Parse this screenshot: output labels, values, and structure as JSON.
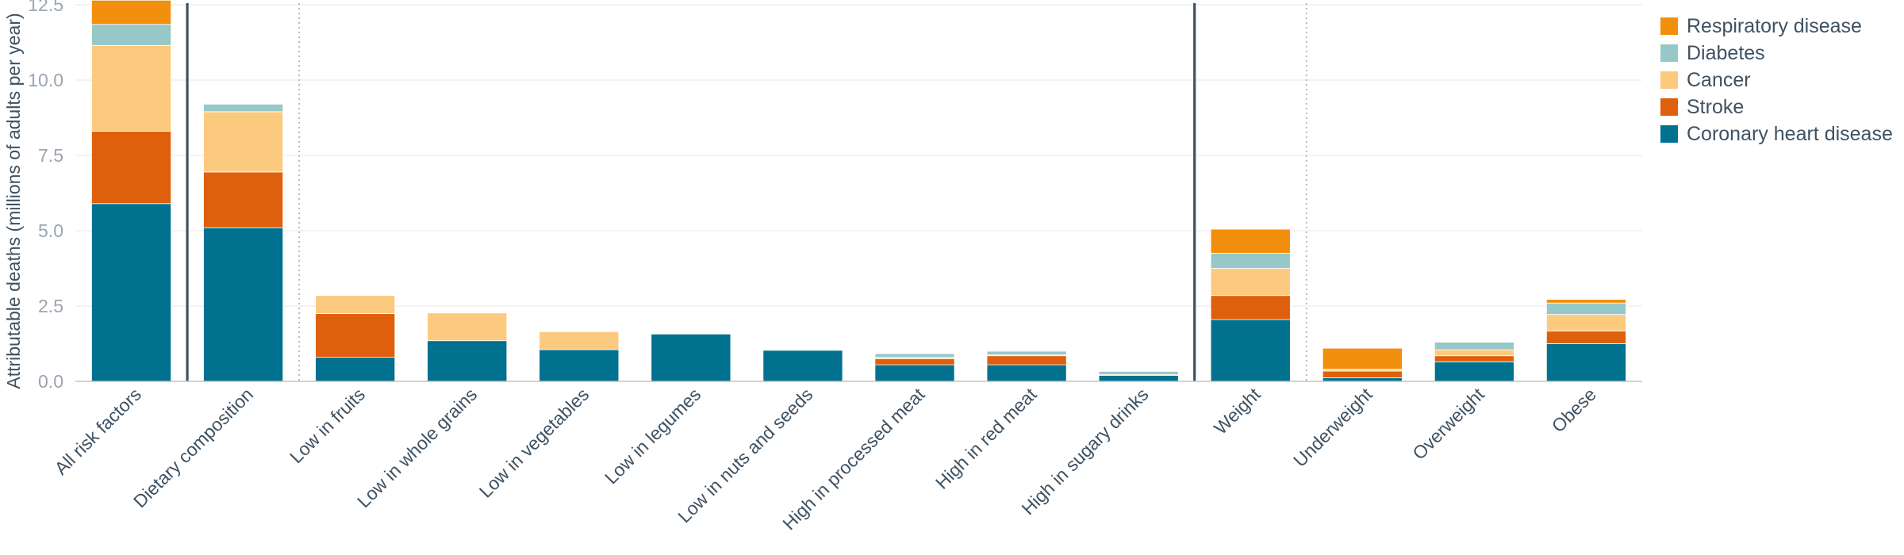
{
  "chart_data": {
    "type": "bar",
    "stacked": true,
    "ylabel": "Attributable deaths (millions of adults per year)",
    "ylim": [
      0,
      12.5
    ],
    "yticks": [
      0,
      2.5,
      5,
      7.5,
      10,
      12.5
    ],
    "ytick_labels": [
      "0.0",
      "2.5",
      "5.0",
      "7.5",
      "10.0",
      "12.5"
    ],
    "grid": true,
    "legend_position": "top-right",
    "categories": [
      "All risk factors",
      "Dietary composition",
      "Low in fruits",
      "Low in whole grains",
      "Low in vegetables",
      "Low in legumes",
      "Low in nuts and seeds",
      "High in processed meat",
      "High in red meat",
      "High in sugary drinks",
      "Weight",
      "Underweight",
      "Overweight",
      "Obese"
    ],
    "series": [
      {
        "name": "Coronary heart disease",
        "color": "#00718f",
        "values": [
          5.9,
          5.1,
          0.8,
          1.35,
          1.05,
          1.57,
          1.03,
          0.55,
          0.55,
          0.2,
          2.05,
          0.12,
          0.65,
          1.25
        ]
      },
      {
        "name": "Stroke",
        "color": "#de600c",
        "values": [
          2.4,
          1.85,
          1.45,
          0,
          0,
          0,
          0,
          0.2,
          0.3,
          0,
          0.8,
          0.22,
          0.2,
          0.42
        ]
      },
      {
        "name": "Cancer",
        "color": "#fcca7f",
        "values": [
          2.85,
          2.0,
          0.6,
          0.92,
          0.6,
          0,
          0,
          0.05,
          0.03,
          0.03,
          0.9,
          0.05,
          0.2,
          0.55
        ]
      },
      {
        "name": "Diabetes",
        "color": "#96c8c8",
        "values": [
          0.7,
          0.25,
          0,
          0,
          0,
          0,
          0,
          0.12,
          0.12,
          0.1,
          0.5,
          0.01,
          0.25,
          0.38
        ]
      },
      {
        "name": "Respiratory disease",
        "color": "#f28f0c",
        "values": [
          0.8,
          0,
          0,
          0,
          0,
          0,
          0,
          0,
          0,
          0,
          0.8,
          0.7,
          0,
          0.12
        ]
      }
    ],
    "group_dividers": [
      {
        "after_index": 0,
        "style": "solid"
      },
      {
        "after_index": 1,
        "style": "dotted"
      },
      {
        "after_index": 9,
        "style": "solid"
      },
      {
        "after_index": 10,
        "style": "dotted"
      }
    ]
  }
}
